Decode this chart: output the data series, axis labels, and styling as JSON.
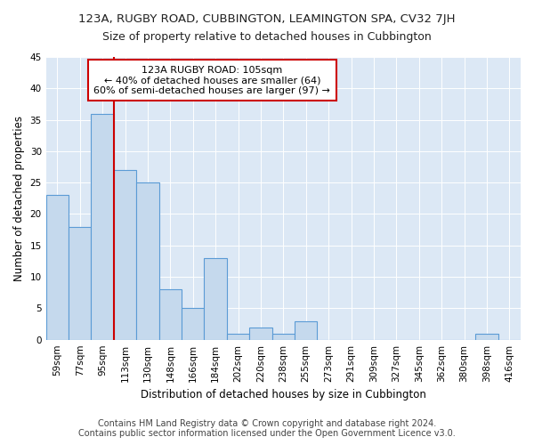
{
  "title": "123A, RUGBY ROAD, CUBBINGTON, LEAMINGTON SPA, CV32 7JH",
  "subtitle": "Size of property relative to detached houses in Cubbington",
  "xlabel": "Distribution of detached houses by size in Cubbington",
  "ylabel": "Number of detached properties",
  "categories": [
    "59sqm",
    "77sqm",
    "95sqm",
    "113sqm",
    "130sqm",
    "148sqm",
    "166sqm",
    "184sqm",
    "202sqm",
    "220sqm",
    "238sqm",
    "255sqm",
    "273sqm",
    "291sqm",
    "309sqm",
    "327sqm",
    "345sqm",
    "362sqm",
    "380sqm",
    "398sqm",
    "416sqm"
  ],
  "values": [
    23,
    18,
    36,
    27,
    25,
    8,
    5,
    13,
    1,
    2,
    1,
    3,
    0,
    0,
    0,
    0,
    0,
    0,
    0,
    1,
    0
  ],
  "bar_color": "#c5d9ed",
  "bar_edge_color": "#5b9bd5",
  "vline_color": "#cc0000",
  "vline_x_index": 3.0,
  "annotation_text": "123A RUGBY ROAD: 105sqm\n← 40% of detached houses are smaller (64)\n60% of semi-detached houses are larger (97) →",
  "annotation_box_color": "#ffffff",
  "annotation_box_edge_color": "#cc0000",
  "ylim": [
    0,
    45
  ],
  "yticks": [
    0,
    5,
    10,
    15,
    20,
    25,
    30,
    35,
    40,
    45
  ],
  "footer_line1": "Contains HM Land Registry data © Crown copyright and database right 2024.",
  "footer_line2": "Contains public sector information licensed under the Open Government Licence v3.0.",
  "fig_bg_color": "#ffffff",
  "plot_bg_color": "#dce8f5",
  "title_fontsize": 9.5,
  "subtitle_fontsize": 9,
  "axis_label_fontsize": 8.5,
  "tick_fontsize": 7.5,
  "annotation_fontsize": 8,
  "footer_fontsize": 7
}
